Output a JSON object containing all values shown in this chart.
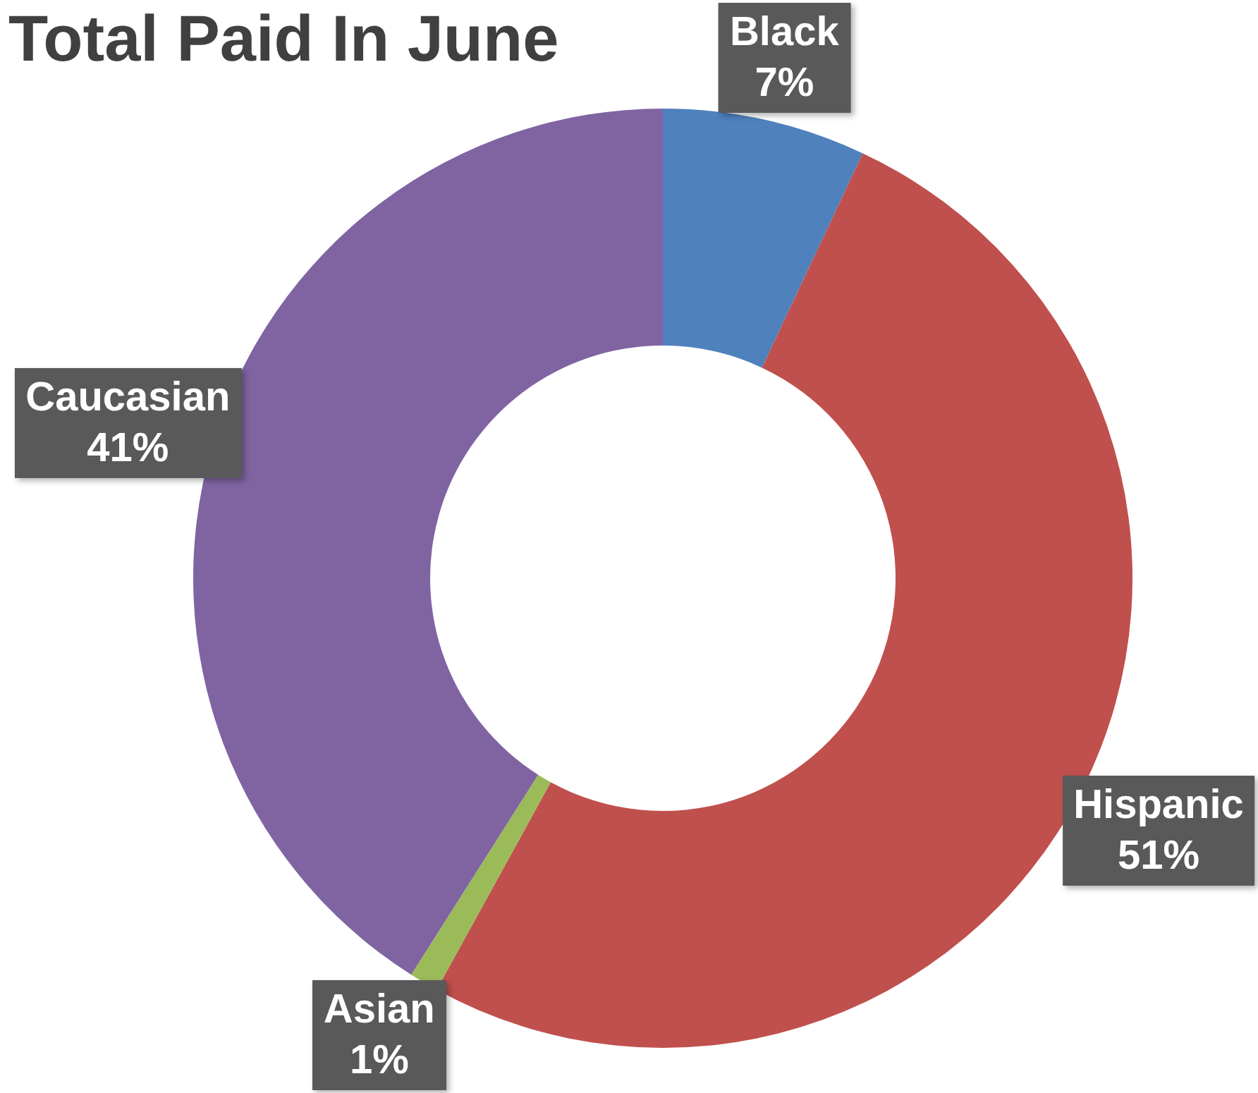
{
  "chart_data": {
    "type": "donut",
    "title": "Total Paid In June",
    "categories": [
      "Black",
      "Hispanic",
      "Asian",
      "Caucasian"
    ],
    "values": [
      7,
      51,
      1,
      41
    ],
    "value_labels": [
      "7%",
      "51%",
      "1%",
      "41%"
    ],
    "colors": [
      "#4f81bd",
      "#c0504d",
      "#9bbb59",
      "#8064a2"
    ]
  }
}
